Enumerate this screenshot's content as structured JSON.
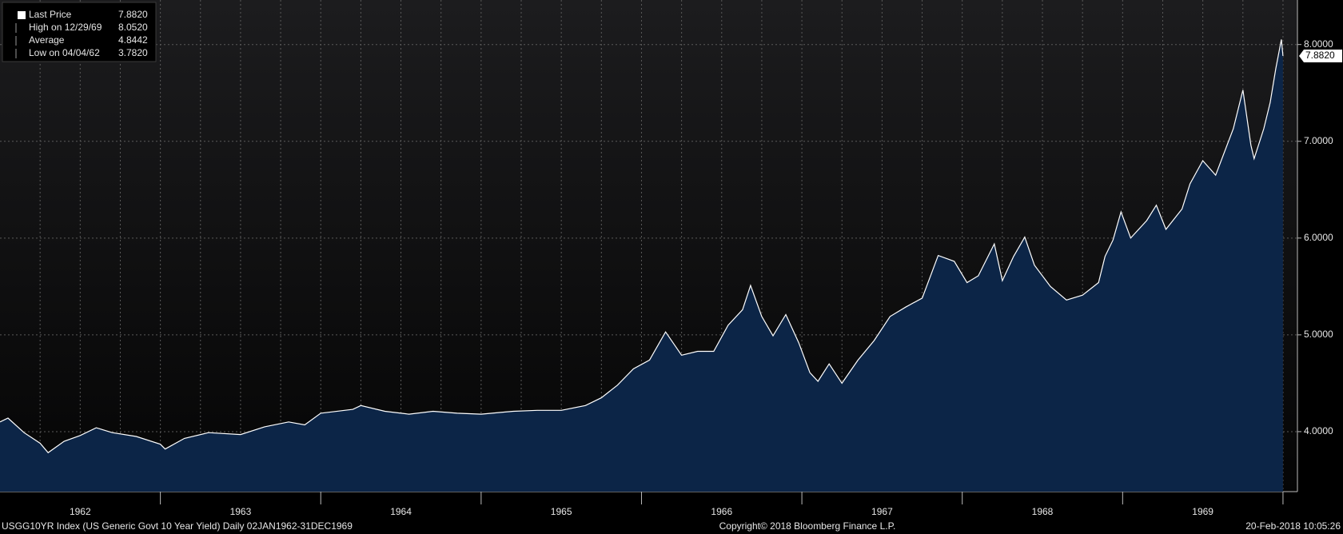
{
  "chart_data": {
    "type": "area",
    "x": [
      1962.0,
      1962.05,
      1962.15,
      1962.25,
      1962.3,
      1962.4,
      1962.5,
      1962.6,
      1962.7,
      1962.85,
      1963.0,
      1963.03,
      1963.15,
      1963.3,
      1963.5,
      1963.65,
      1963.8,
      1963.9,
      1964.0,
      1964.2,
      1964.25,
      1964.4,
      1964.55,
      1964.7,
      1964.85,
      1965.0,
      1965.2,
      1965.35,
      1965.5,
      1965.65,
      1965.75,
      1965.85,
      1965.95,
      1966.05,
      1966.15,
      1966.25,
      1966.35,
      1966.45,
      1966.54,
      1966.63,
      1966.68,
      1966.75,
      1966.82,
      1966.9,
      1966.98,
      1967.05,
      1967.1,
      1967.17,
      1967.25,
      1967.35,
      1967.45,
      1967.55,
      1967.65,
      1967.75,
      1967.85,
      1967.95,
      1968.03,
      1968.1,
      1968.2,
      1968.25,
      1968.32,
      1968.39,
      1968.45,
      1968.55,
      1968.65,
      1968.75,
      1968.85,
      1968.89,
      1968.94,
      1968.99,
      1969.05,
      1969.15,
      1969.21,
      1969.27,
      1969.37,
      1969.42,
      1969.5,
      1969.58,
      1969.69,
      1969.75,
      1969.8,
      1969.82,
      1969.88,
      1969.92,
      1969.955,
      1969.99,
      1970.0
    ],
    "series": [
      {
        "color": "#ffffff",
        "fill": "#0c2547",
        "values": [
          4.1,
          4.14,
          3.99,
          3.88,
          3.782,
          3.9,
          3.96,
          4.04,
          3.99,
          3.95,
          3.87,
          3.82,
          3.93,
          3.99,
          3.97,
          4.05,
          4.1,
          4.07,
          4.19,
          4.23,
          4.27,
          4.21,
          4.18,
          4.21,
          4.19,
          4.18,
          4.21,
          4.22,
          4.22,
          4.27,
          4.35,
          4.48,
          4.65,
          4.74,
          5.03,
          4.79,
          4.83,
          4.83,
          5.1,
          5.26,
          5.51,
          5.19,
          4.99,
          5.21,
          4.92,
          4.61,
          4.52,
          4.7,
          4.5,
          4.74,
          4.94,
          5.19,
          5.29,
          5.38,
          5.82,
          5.76,
          5.54,
          5.61,
          5.94,
          5.56,
          5.81,
          6.01,
          5.72,
          5.5,
          5.36,
          5.41,
          5.54,
          5.81,
          5.98,
          6.27,
          6.0,
          6.18,
          6.34,
          6.09,
          6.3,
          6.56,
          6.8,
          6.65,
          7.13,
          7.53,
          6.96,
          6.82,
          7.13,
          7.4,
          7.75,
          8.052,
          7.882
        ]
      }
    ],
    "xlim": [
      1962,
      1970.09
    ],
    "ylim": [
      3.38,
      8.46
    ],
    "xticks": [
      {
        "value": 1962.5,
        "label": "1962"
      },
      {
        "value": 1963.5,
        "label": "1963"
      },
      {
        "value": 1964.5,
        "label": "1964"
      },
      {
        "value": 1965.5,
        "label": "1965"
      },
      {
        "value": 1966.5,
        "label": "1966"
      },
      {
        "value": 1967.5,
        "label": "1967"
      },
      {
        "value": 1968.5,
        "label": "1968"
      },
      {
        "value": 1969.5,
        "label": "1969"
      }
    ],
    "xgrid": [
      1962.25,
      1962.5,
      1962.75,
      1963,
      1963.25,
      1963.5,
      1963.75,
      1964,
      1964.25,
      1964.5,
      1964.75,
      1965,
      1965.25,
      1965.5,
      1965.75,
      1966,
      1966.25,
      1966.5,
      1966.75,
      1967,
      1967.25,
      1967.5,
      1967.75,
      1968,
      1968.25,
      1968.5,
      1968.75,
      1969,
      1969.25,
      1969.5,
      1969.75,
      1970
    ],
    "yticks": [
      {
        "value": 4,
        "label": "4.0000"
      },
      {
        "value": 5,
        "label": "5.0000"
      },
      {
        "value": 6,
        "label": "6.0000"
      },
      {
        "value": 7,
        "label": "7.0000"
      },
      {
        "value": 8,
        "label": "8.0000"
      }
    ],
    "grid": true,
    "last_price": {
      "value": 7.882,
      "label": "7.8820"
    },
    "legend": [
      {
        "label": "Last Price",
        "value": 7.882,
        "value_label": "7.8820"
      },
      {
        "label": "High on 12/29/69",
        "value": 8.052,
        "value_label": "8.0520"
      },
      {
        "label": "Average",
        "value": 4.8442,
        "value_label": "4.8442"
      },
      {
        "label": "Low on 04/04/62",
        "value": 3.782,
        "value_label": "3.7820"
      }
    ],
    "footer": {
      "index": "USGG10YR Index (US Generic Govt 10 Year Yield)  Daily 02JAN1962-31DEC1969",
      "copyright": "Copyright© 2018 Bloomberg Finance L.P.",
      "timestamp": "20-Feb-2018 10:05:26"
    }
  }
}
